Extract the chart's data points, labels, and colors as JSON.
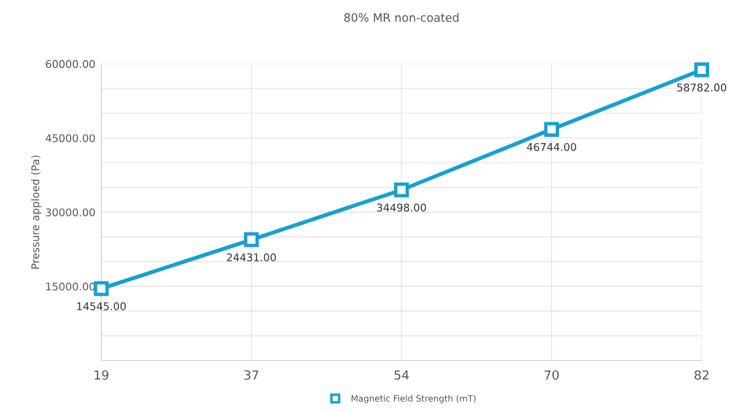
{
  "chart_data": {
    "type": "line",
    "title": "80% MR non-coated",
    "categories": [
      "19",
      "37",
      "54",
      "70",
      "82"
    ],
    "series": [
      {
        "name": "Magnetic Field Strength (mT)",
        "color": "#1a9fd0",
        "values": [
          14545,
          24431,
          34498,
          46744,
          58782
        ],
        "value_labels": [
          "14545.00",
          "24431.00",
          "34498.00",
          "46744.00",
          "58782.00"
        ]
      }
    ],
    "ylabel": "Pressure apploed (Pa)",
    "ylim": [
      0,
      60000
    ],
    "yticks": [
      {
        "value": 5000,
        "label": null
      },
      {
        "value": 10000,
        "label": null
      },
      {
        "value": 15000,
        "label": "15000.00"
      },
      {
        "value": 20000,
        "label": null
      },
      {
        "value": 25000,
        "label": null
      },
      {
        "value": 30000,
        "label": "30000.00"
      },
      {
        "value": 35000,
        "label": null
      },
      {
        "value": 40000,
        "label": null
      },
      {
        "value": 45000,
        "label": "45000.00"
      },
      {
        "value": 50000,
        "label": null
      },
      {
        "value": 55000,
        "label": null
      },
      {
        "value": 60000,
        "label": "60000.00"
      }
    ],
    "grid": true,
    "legend": "bottom",
    "marker": "square",
    "line_style": "solid"
  }
}
